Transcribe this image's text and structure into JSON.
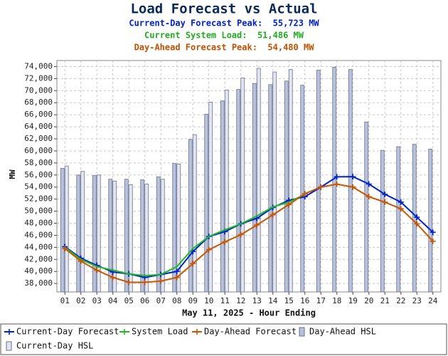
{
  "chart_data": {
    "type": "combo",
    "title": "Load Forecast vs Actual",
    "subtitles": [
      {
        "text": "Current-Day Forecast Peak:  55,723 MW",
        "color": "#0022cc"
      },
      {
        "text": "Current System Load:  51,486 MW",
        "color": "#22aa22"
      },
      {
        "text": "Day-Ahead Forecast Peak:  54,480 MW",
        "color": "#c05000"
      }
    ],
    "x_label": "May 11, 2025 - Hour Ending",
    "y_label": "MW",
    "categories": [
      "01",
      "02",
      "03",
      "04",
      "05",
      "06",
      "07",
      "08",
      "09",
      "10",
      "11",
      "12",
      "13",
      "14",
      "15",
      "16",
      "17",
      "18",
      "19",
      "20",
      "21",
      "22",
      "23",
      "24"
    ],
    "series": [
      {
        "name": "Current-Day Forecast",
        "type": "line",
        "marker": true,
        "color": "#0022cc",
        "values": [
          44100,
          42200,
          41000,
          39900,
          39600,
          39000,
          39500,
          40000,
          43300,
          45800,
          46600,
          47900,
          48800,
          50600,
          51800,
          52400,
          54000,
          55700,
          55723,
          54500,
          52800,
          51500,
          49000,
          46500
        ]
      },
      {
        "name": "System Load",
        "type": "line",
        "marker": false,
        "color": "#22bb22",
        "values": [
          44000,
          42000,
          40800,
          40200,
          39600,
          39300,
          39500,
          40800,
          43800,
          45800,
          46900,
          47900,
          49200,
          50700,
          51500,
          52800,
          null,
          null,
          null,
          null,
          null,
          null,
          null,
          null
        ]
      },
      {
        "name": "Day-Ahead Forecast",
        "type": "line",
        "marker": true,
        "color": "#cc5500",
        "values": [
          43800,
          41700,
          40200,
          39000,
          38200,
          38200,
          38400,
          39000,
          41300,
          43600,
          44900,
          46100,
          47700,
          49400,
          51100,
          52900,
          54000,
          54480,
          54000,
          52400,
          51500,
          50400,
          47900,
          45000
        ]
      },
      {
        "name": "Day-Ahead HSL",
        "type": "bar",
        "color": "#b8c2dc",
        "values": [
          57100,
          56000,
          55900,
          55300,
          55300,
          55200,
          55700,
          57900,
          61900,
          66100,
          68300,
          70200,
          71200,
          71000,
          71600,
          70900,
          73400,
          73900,
          73500,
          64800,
          60100,
          60700,
          61100,
          60300
        ]
      },
      {
        "name": "Current-Day HSL",
        "type": "bar",
        "color": "#e2e6f2",
        "values": [
          57500,
          56600,
          56000,
          55000,
          54400,
          54500,
          55300,
          57800,
          62700,
          68100,
          70100,
          72100,
          73700,
          73100,
          73500,
          null,
          null,
          null,
          null,
          null,
          null,
          null,
          null,
          null
        ]
      }
    ],
    "ylim": [
      36600,
      75000
    ],
    "yticks": [
      {
        "value": 38000,
        "label": "38,000"
      },
      {
        "value": 40000,
        "label": "40,000"
      },
      {
        "value": 42000,
        "label": "42,000"
      },
      {
        "value": 44000,
        "label": "44,000"
      },
      {
        "value": 46000,
        "label": "46,000"
      },
      {
        "value": 48000,
        "label": "48,000"
      },
      {
        "value": 50000,
        "label": "50,000"
      },
      {
        "value": 52000,
        "label": "52,000"
      },
      {
        "value": 54000,
        "label": "54,000"
      },
      {
        "value": 56000,
        "label": "56,000"
      },
      {
        "value": 58000,
        "label": "58,000"
      },
      {
        "value": 60000,
        "label": "60,000"
      },
      {
        "value": 62000,
        "label": "62,000"
      },
      {
        "value": 64000,
        "label": "64,000"
      },
      {
        "value": 66000,
        "label": "66,000"
      },
      {
        "value": 68000,
        "label": "68,000"
      },
      {
        "value": 70000,
        "label": "70,000"
      },
      {
        "value": 72000,
        "label": "72,000"
      },
      {
        "value": 74000,
        "label": "74,000"
      }
    ],
    "grid": true,
    "legend_position": "bottom"
  }
}
